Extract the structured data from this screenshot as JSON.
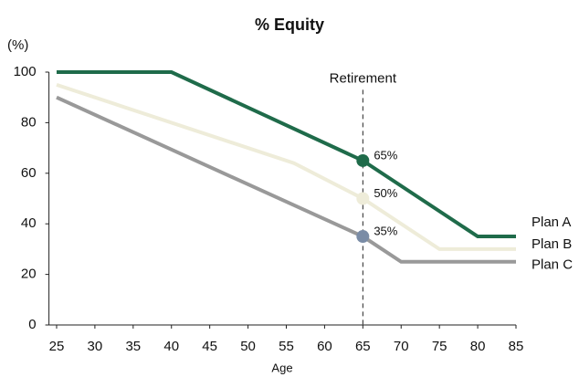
{
  "chart_data": {
    "type": "line",
    "title": "% Equity",
    "y_label": "(%)",
    "x_label": "Age",
    "xlim": [
      24,
      85
    ],
    "ylim": [
      0,
      100
    ],
    "xticks": [
      25,
      30,
      35,
      40,
      45,
      50,
      55,
      60,
      65,
      70,
      75,
      80,
      85
    ],
    "yticks": [
      0,
      20,
      40,
      60,
      80,
      100
    ],
    "grid": false,
    "series": [
      {
        "name": "Plan A",
        "color": "#1f6b4a",
        "x": [
          25,
          40,
          65,
          80,
          85
        ],
        "values": [
          100,
          100,
          65,
          35,
          35
        ]
      },
      {
        "name": "Plan B",
        "color": "#eeecd9",
        "x": [
          25,
          56,
          65,
          75,
          85
        ],
        "values": [
          95,
          64,
          50,
          30,
          30
        ]
      },
      {
        "name": "Plan C",
        "color": "#999999",
        "x": [
          25,
          65,
          70,
          85
        ],
        "values": [
          90,
          35,
          25,
          25
        ]
      }
    ],
    "markers": [
      {
        "x": 65,
        "y": 65,
        "label": "65%",
        "color": "#1f6b4a"
      },
      {
        "x": 65,
        "y": 50,
        "label": "50%",
        "color": "#eeecd9"
      },
      {
        "x": 65,
        "y": 35,
        "label": "35%",
        "color": "#7a8ca6"
      }
    ],
    "vline": {
      "x": 65,
      "label": "Retirement"
    }
  }
}
